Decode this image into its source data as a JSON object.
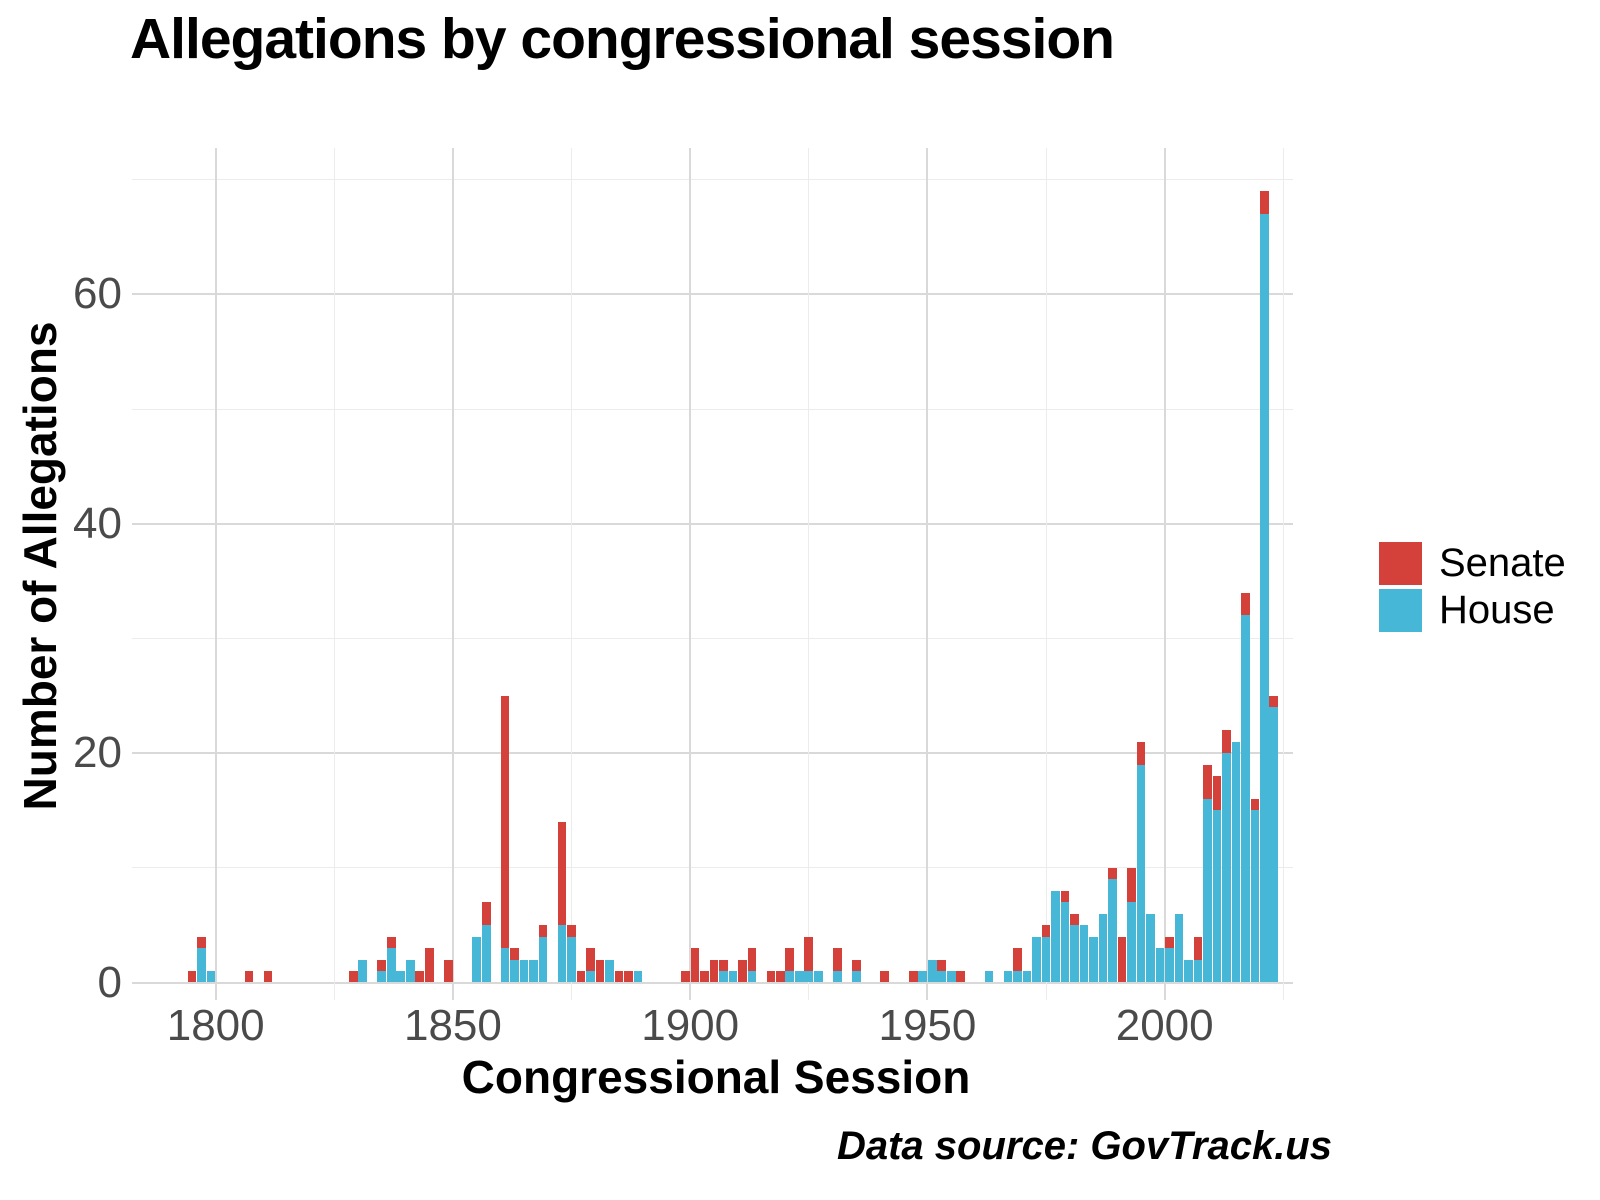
{
  "title": "Allegations by congressional session",
  "caption": "Data source: GovTrack.us",
  "legend": {
    "position": "right",
    "items": [
      {
        "label": "Senate",
        "color": "#d3413a"
      },
      {
        "label": "House",
        "color": "#47b7d8"
      }
    ]
  },
  "colors": {
    "senate": "#d3413a",
    "house": "#47b7d8",
    "grid_major": "#d9d9d9",
    "grid_minor": "#ececec",
    "tick_text": "#4a4a4a"
  },
  "chart_data": {
    "type": "bar",
    "stacked": true,
    "title": "Allegations by congressional session",
    "xlabel": "Congressional Session",
    "ylabel": "Number of Allegations",
    "legend_position": "right",
    "grid": true,
    "xlim": [
      1784,
      2028
    ],
    "ylim": [
      0,
      70
    ],
    "x_major_ticks": [
      1800,
      1850,
      1900,
      1950,
      2000
    ],
    "x_minor_ticks": [
      1825,
      1875,
      1925,
      1975,
      2025
    ],
    "y_major_ticks": [
      0,
      20,
      40,
      60
    ],
    "y_minor_ticks": [
      10,
      30,
      50,
      70
    ],
    "x": [
      1795,
      1797,
      1799,
      1807,
      1811,
      1829,
      1831,
      1835,
      1837,
      1839,
      1841,
      1843,
      1845,
      1849,
      1855,
      1857,
      1861,
      1863,
      1865,
      1867,
      1869,
      1873,
      1875,
      1877,
      1879,
      1881,
      1883,
      1885,
      1887,
      1889,
      1899,
      1901,
      1903,
      1905,
      1907,
      1909,
      1911,
      1913,
      1917,
      1919,
      1921,
      1923,
      1925,
      1927,
      1931,
      1935,
      1941,
      1947,
      1949,
      1951,
      1953,
      1955,
      1957,
      1963,
      1967,
      1969,
      1971,
      1973,
      1975,
      1977,
      1979,
      1981,
      1983,
      1985,
      1987,
      1989,
      1991,
      1993,
      1995,
      1997,
      1999,
      2001,
      2003,
      2005,
      2007,
      2009,
      2011,
      2013,
      2015,
      2017,
      2019,
      2021,
      2023
    ],
    "stack_bottom_to_top": [
      "House",
      "Senate"
    ],
    "series": [
      {
        "name": "House",
        "color": "#47b7d8",
        "values": [
          0,
          3,
          1,
          0,
          0,
          0,
          2,
          1,
          3,
          1,
          2,
          0,
          0,
          0,
          4,
          5,
          3,
          2,
          2,
          2,
          4,
          5,
          4,
          0,
          1,
          0,
          2,
          0,
          0,
          1,
          0,
          0,
          0,
          0,
          1,
          1,
          0,
          1,
          0,
          0,
          1,
          1,
          1,
          1,
          1,
          1,
          0,
          0,
          1,
          2,
          1,
          1,
          0,
          1,
          1,
          1,
          1,
          4,
          4,
          8,
          7,
          5,
          5,
          4,
          6,
          9,
          0,
          7,
          19,
          6,
          3,
          3,
          6,
          2,
          2,
          16,
          15,
          20,
          21,
          32,
          15,
          67,
          24
        ]
      },
      {
        "name": "Senate",
        "color": "#d3413a",
        "values": [
          1,
          1,
          0,
          1,
          1,
          1,
          0,
          1,
          1,
          0,
          0,
          1,
          3,
          2,
          0,
          2,
          22,
          1,
          0,
          0,
          1,
          9,
          1,
          1,
          2,
          2,
          0,
          1,
          1,
          0,
          1,
          3,
          1,
          2,
          1,
          0,
          2,
          2,
          1,
          1,
          2,
          0,
          3,
          0,
          2,
          1,
          1,
          1,
          0,
          0,
          1,
          0,
          1,
          0,
          0,
          2,
          0,
          0,
          1,
          0,
          1,
          1,
          0,
          0,
          0,
          1,
          4,
          3,
          2,
          0,
          0,
          1,
          0,
          0,
          2,
          3,
          3,
          2,
          0,
          2,
          1,
          2,
          1
        ]
      }
    ]
  }
}
